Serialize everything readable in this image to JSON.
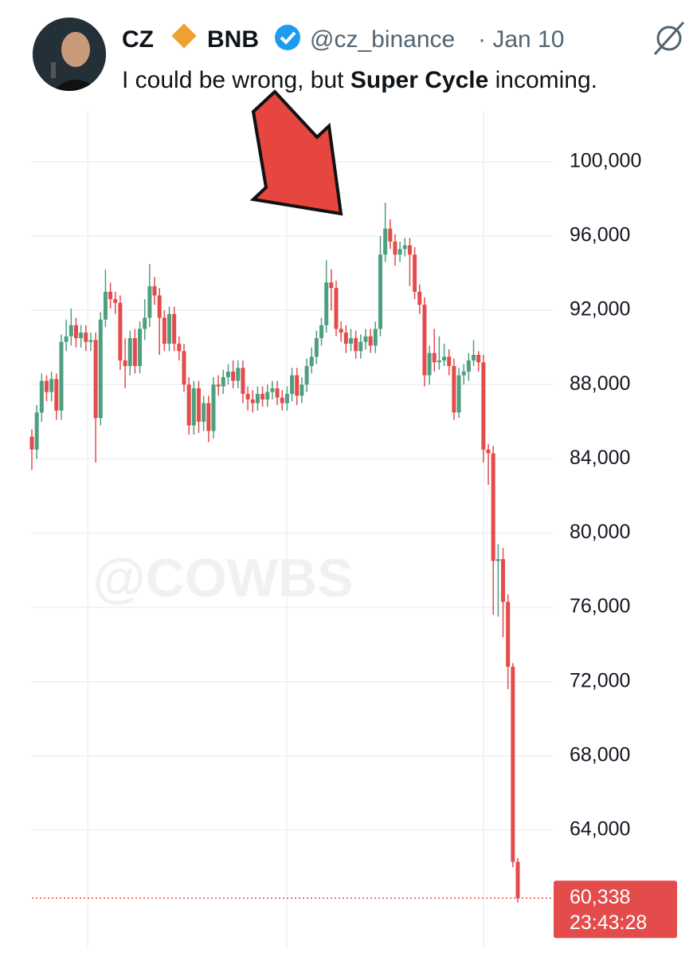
{
  "tweet": {
    "name": "CZ",
    "affiliation": "BNB",
    "handle": "@cz_binance",
    "date": "· Jan 10",
    "text_parts": [
      "I could be wrong, but ",
      "Super Cycle",
      " incoming."
    ]
  },
  "watermark": "@COWBS",
  "chart_data": {
    "type": "candlestick",
    "up_color": "#4e9e80",
    "down_color": "#e44b4b",
    "ylim": [
      57600,
      102700
    ],
    "yticks": [
      {
        "value": 64000,
        "label": "64,000"
      },
      {
        "value": 68000,
        "label": "68,000"
      },
      {
        "value": 72000,
        "label": "72,000"
      },
      {
        "value": 76000,
        "label": "76,000"
      },
      {
        "value": 80000,
        "label": "80,000"
      },
      {
        "value": 84000,
        "label": "84,000"
      },
      {
        "value": 88000,
        "label": "88,000"
      },
      {
        "value": 92000,
        "label": "92,000"
      },
      {
        "value": 96000,
        "label": "96,000"
      },
      {
        "value": 100000,
        "label": "100,000"
      }
    ],
    "grid": true,
    "open": [
      85200,
      84500,
      86500,
      88200,
      87600,
      88300,
      86600,
      90300,
      90600,
      91200,
      90500,
      90800,
      90300,
      90400,
      86200,
      91500,
      93000,
      92600,
      92400,
      89300,
      89000,
      90500,
      89000,
      91000,
      91600,
      93300,
      92800,
      91600,
      90200,
      91800,
      90200,
      89800,
      88000,
      85800,
      87800,
      86000,
      87000,
      85500,
      88000,
      87900,
      88400,
      88700,
      88200,
      88900,
      87500,
      87200,
      87000,
      87500,
      87200,
      87600,
      87800,
      87300,
      87000,
      87500,
      88500,
      87400,
      88000,
      89000,
      89500,
      90500,
      91200,
      93500,
      93200,
      91000,
      90800,
      90200,
      90500,
      89800,
      90300,
      90600,
      90100,
      91000,
      95000,
      96400,
      95700,
      95000,
      95300,
      95500,
      95000,
      93000,
      92300,
      88500,
      89700,
      89200,
      89300,
      89500,
      89000,
      86500,
      88500,
      88700,
      89300,
      89600,
      89200,
      84500,
      84300,
      78500,
      78600,
      76300,
      72800,
      62300
    ],
    "high": [
      85600,
      86900,
      88600,
      88500,
      88700,
      88600,
      90700,
      91500,
      92100,
      91600,
      91200,
      91200,
      90800,
      90800,
      91900,
      94200,
      93500,
      93000,
      92800,
      90500,
      90900,
      91000,
      91400,
      92600,
      94500,
      93800,
      93200,
      92000,
      92200,
      92200,
      90600,
      90200,
      88400,
      88200,
      88200,
      87400,
      87400,
      88400,
      88500,
      88800,
      89100,
      89300,
      89300,
      89300,
      87900,
      87700,
      87900,
      87900,
      88000,
      88200,
      88200,
      87700,
      87900,
      88900,
      88900,
      88400,
      89400,
      90000,
      90900,
      91600,
      94700,
      94200,
      93600,
      91400,
      91200,
      91000,
      90900,
      90700,
      91000,
      91000,
      91400,
      96000,
      97800,
      96900,
      96100,
      95700,
      95900,
      95900,
      95400,
      93400,
      92700,
      90100,
      91000,
      90600,
      90200,
      89900,
      89400,
      88900,
      89100,
      89700,
      90400,
      89800,
      89600,
      84800,
      84700,
      79400,
      79200,
      76700,
      73000,
      62500
    ],
    "low": [
      83400,
      84000,
      86000,
      87100,
      87100,
      86100,
      86100,
      89800,
      90100,
      90000,
      90000,
      89800,
      89800,
      83800,
      85800,
      91100,
      92100,
      91800,
      88800,
      87800,
      88500,
      88600,
      88600,
      90400,
      91100,
      92300,
      89600,
      89800,
      89800,
      89800,
      89300,
      87600,
      85300,
      85300,
      85400,
      85500,
      84900,
      85100,
      87400,
      87500,
      88000,
      87800,
      87800,
      87000,
      86600,
      86500,
      86600,
      86800,
      86800,
      87200,
      86900,
      86600,
      86600,
      87100,
      86900,
      87000,
      87600,
      88600,
      89100,
      90100,
      90800,
      92000,
      90600,
      90300,
      89700,
      89800,
      89400,
      89400,
      89900,
      89700,
      89700,
      90600,
      94600,
      95300,
      94400,
      94600,
      94900,
      93300,
      92600,
      91800,
      87900,
      88000,
      88700,
      88800,
      89000,
      88500,
      86100,
      86200,
      88000,
      88200,
      89000,
      88700,
      83800,
      82600,
      75600,
      75500,
      74400,
      71600,
      62000,
      60100
    ],
    "close": [
      84500,
      86500,
      88200,
      87600,
      88300,
      86600,
      90300,
      90600,
      91200,
      90500,
      90800,
      90300,
      90400,
      86200,
      91500,
      93000,
      92600,
      92400,
      89300,
      89000,
      90500,
      89000,
      91000,
      91600,
      93300,
      92800,
      91600,
      90200,
      91800,
      90200,
      89800,
      88000,
      85800,
      87800,
      86000,
      87000,
      85500,
      88000,
      87900,
      88400,
      88700,
      88200,
      88900,
      87500,
      87200,
      87000,
      87500,
      87200,
      87600,
      87800,
      87300,
      87000,
      87500,
      88500,
      87400,
      88000,
      89000,
      89500,
      90500,
      91200,
      93500,
      93200,
      91000,
      90800,
      90200,
      90500,
      89800,
      90300,
      90600,
      90100,
      91000,
      95000,
      96400,
      95700,
      95000,
      95300,
      95500,
      95000,
      93000,
      92300,
      88500,
      89700,
      89200,
      89300,
      89500,
      89000,
      86500,
      88500,
      88700,
      89300,
      89600,
      89200,
      84500,
      84300,
      78500,
      78600,
      76300,
      72800,
      62300,
      60338
    ],
    "last_price": {
      "value": 60338,
      "label": "60,338"
    },
    "countdown": "23:43:28"
  }
}
